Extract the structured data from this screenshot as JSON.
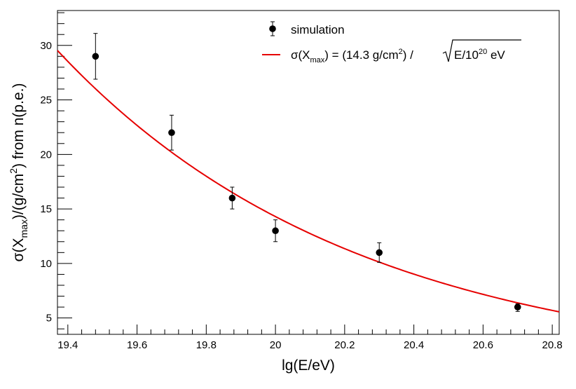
{
  "chart_data": {
    "type": "scatter",
    "xlabel": "lg(E/eV)",
    "ylabel": "σ(X_max)/(g/cm²) from n(p.e.)",
    "xlim": [
      19.37,
      20.82
    ],
    "ylim": [
      3.5,
      33.2
    ],
    "x_ticks": [
      19.4,
      19.6,
      19.8,
      20.0,
      20.2,
      20.4,
      20.6,
      20.8
    ],
    "x_tick_labels": [
      "19.4",
      "19.6",
      "19.8",
      "20",
      "20.2",
      "20.4",
      "20.6",
      "20.8"
    ],
    "y_ticks": [
      5,
      10,
      15,
      20,
      25,
      30
    ],
    "y_tick_labels": [
      "5",
      "10",
      "15",
      "20",
      "25",
      "30"
    ],
    "series": [
      {
        "name": "simulation",
        "kind": "points_with_errors",
        "color": "#000000",
        "x": [
          19.48,
          19.7,
          19.875,
          20.0,
          20.3,
          20.7
        ],
        "y": [
          29.0,
          22.0,
          16.0,
          13.0,
          11.0,
          6.0
        ],
        "yerr_low": [
          2.1,
          1.6,
          1.0,
          1.0,
          0.9,
          0.4
        ],
        "yerr_high": [
          2.1,
          1.6,
          1.0,
          1.0,
          0.9,
          0.3
        ]
      },
      {
        "name": "σ(X_max) = (14.3 g/cm²) / √(E/10²⁰ eV)",
        "kind": "line",
        "color": "#e60000",
        "formula": "y = 14.3 / sqrt(10^(x - 20))",
        "x_range": [
          19.37,
          20.82
        ]
      }
    ],
    "legend": {
      "placement": "top",
      "sim_label": "simulation",
      "fit_label_prefix": "σ(X",
      "fit_label_sub": "max",
      "fit_label_mid": ") = (14.3 g/cm",
      "fit_label_sup": "2",
      "fit_label_post": ") / ",
      "fit_label_root": "E/10",
      "fit_label_root_sup": "20",
      "fit_label_end": " eV"
    },
    "ylabel_parts": {
      "a": "σ(X",
      "sub": "max",
      "b": ")/(g/cm",
      "sup": "2",
      "c": ") from n(p.e.)"
    }
  }
}
